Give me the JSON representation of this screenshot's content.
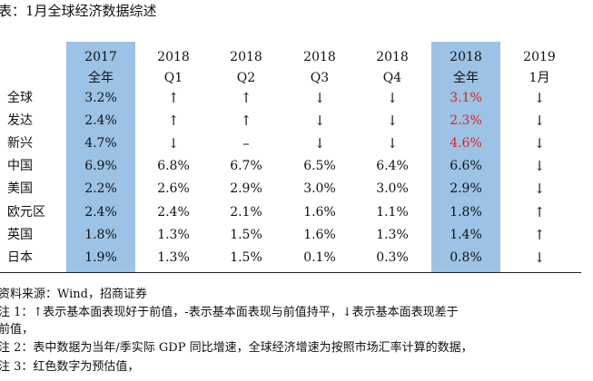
{
  "title": "表：1月全球经济数据综述",
  "table": {
    "columns": [
      {
        "year": "2017",
        "sub": "全年"
      },
      {
        "year": "2018",
        "sub": "Q1"
      },
      {
        "year": "2018",
        "sub": "Q2"
      },
      {
        "year": "2018",
        "sub": "Q3"
      },
      {
        "year": "2018",
        "sub": "Q4"
      },
      {
        "year": "2018",
        "sub": "全年"
      },
      {
        "year": "2019",
        "sub": "1月"
      }
    ],
    "rows": [
      {
        "label": "全球",
        "cells": [
          "3.2%",
          "↑",
          "↑",
          "↓",
          "↓",
          "3.1%",
          "↓"
        ],
        "red": [
          false,
          false,
          false,
          false,
          false,
          true,
          false
        ]
      },
      {
        "label": "发达",
        "cells": [
          "2.4%",
          "↑",
          "↑",
          "↓",
          "↓",
          "2.3%",
          "↓"
        ],
        "red": [
          false,
          false,
          false,
          false,
          false,
          true,
          false
        ]
      },
      {
        "label": "新兴",
        "cells": [
          "4.7%",
          "↓",
          "–",
          "↓",
          "↓",
          "4.6%",
          "↓"
        ],
        "red": [
          false,
          false,
          false,
          false,
          false,
          true,
          false
        ]
      },
      {
        "label": "中国",
        "cells": [
          "6.9%",
          "6.8%",
          "6.7%",
          "6.5%",
          "6.4%",
          "6.6%",
          "↓"
        ],
        "red": [
          false,
          false,
          false,
          false,
          false,
          false,
          false
        ]
      },
      {
        "label": "美国",
        "cells": [
          "2.2%",
          "2.6%",
          "2.9%",
          "3.0%",
          "3.0%",
          "2.9%",
          "↓"
        ],
        "red": [
          false,
          false,
          false,
          false,
          false,
          false,
          false
        ]
      },
      {
        "label": "欧元区",
        "cells": [
          "2.4%",
          "2.4%",
          "2.1%",
          "1.6%",
          "1.1%",
          "1.8%",
          "↑"
        ],
        "red": [
          false,
          false,
          false,
          false,
          false,
          false,
          false
        ]
      },
      {
        "label": "英国",
        "cells": [
          "1.8%",
          "1.3%",
          "1.5%",
          "1.6%",
          "1.3%",
          "1.4%",
          "↑"
        ],
        "red": [
          false,
          false,
          false,
          false,
          false,
          false,
          false
        ]
      },
      {
        "label": "日本",
        "cells": [
          "1.9%",
          "1.3%",
          "1.5%",
          "0.1%",
          "0.3%",
          "0.8%",
          "↓"
        ],
        "red": [
          false,
          false,
          false,
          false,
          false,
          false,
          false
        ]
      }
    ]
  },
  "notes": [
    "资料来源：Wind，招商证券",
    "注 1：↑表示基本面表现好于前值，-表示基本面表现与前值持平，↓表示基本面表现差于",
    "前值，",
    "注 2：表中数据为当年/季实际 GDP 同比增速，全球经济增速为按照市场汇率计算的数据，",
    "注 3：红色数字为预估值，"
  ],
  "colors": {
    "highlight": "#9cc2e5",
    "estimate_red": "#e01f1f"
  }
}
